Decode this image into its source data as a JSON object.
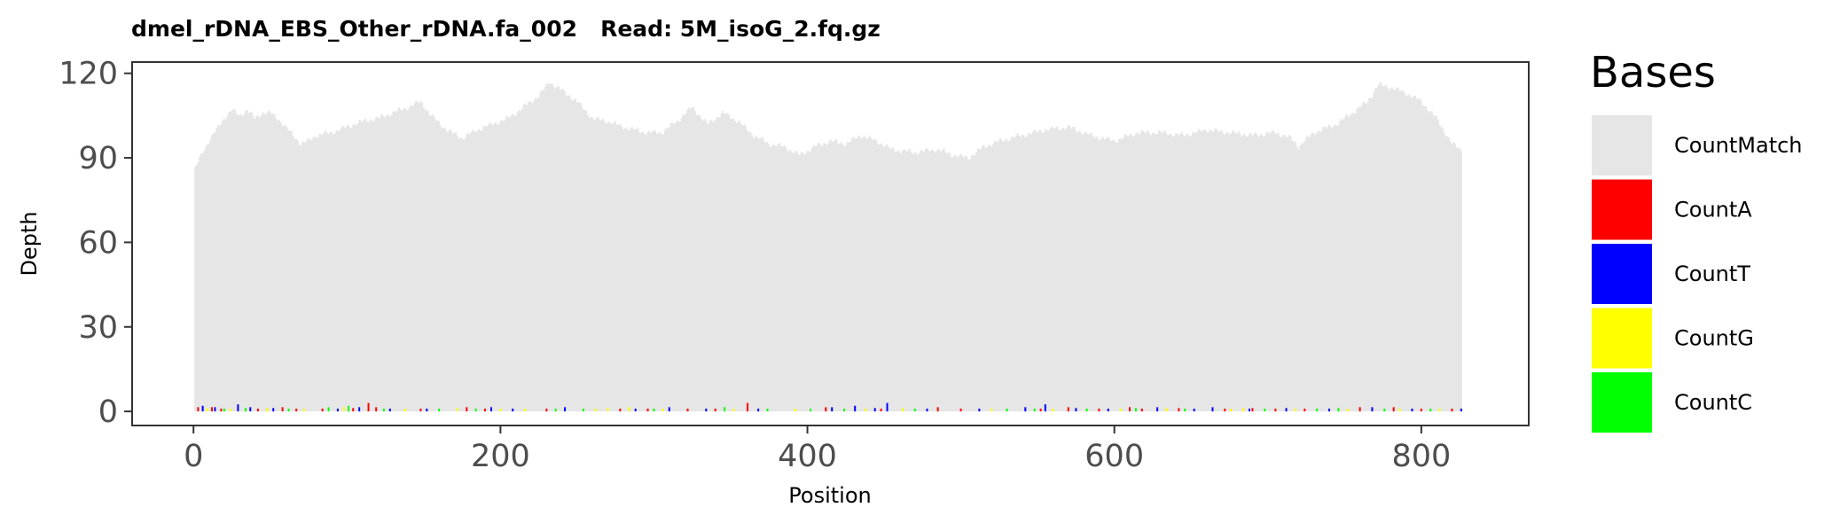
{
  "chart_data": {
    "type": "bar",
    "title": "dmel_rDNA_EBS_Other_rDNA.fa_002   Read: 5M_isoG_2.fq.gz",
    "xlabel": "Position",
    "ylabel": "Depth",
    "xlim": [
      -40,
      870
    ],
    "ylim": [
      -5,
      124
    ],
    "x_ticks": [
      0,
      200,
      400,
      600,
      800
    ],
    "y_ticks": [
      0,
      30,
      60,
      90,
      120
    ],
    "grid": false,
    "legend": {
      "title": "Bases",
      "placement": "right",
      "entries": [
        {
          "label": "CountMatch",
          "color": "#e6e6e6"
        },
        {
          "label": "CountA",
          "color": "#ff0000"
        },
        {
          "label": "CountT",
          "color": "#0000ff"
        },
        {
          "label": "CountG",
          "color": "#ffff00"
        },
        {
          "label": "CountC",
          "color": "#00ff00"
        }
      ]
    },
    "series": [
      {
        "name": "CountMatch",
        "color": "#e6e6e6",
        "profile": [
          [
            1,
            86
          ],
          [
            5,
            91
          ],
          [
            10,
            96
          ],
          [
            15,
            100
          ],
          [
            20,
            104
          ],
          [
            25,
            107
          ],
          [
            30,
            105
          ],
          [
            35,
            107
          ],
          [
            40,
            104
          ],
          [
            45,
            106
          ],
          [
            50,
            106
          ],
          [
            55,
            104
          ],
          [
            60,
            101
          ],
          [
            65,
            98
          ],
          [
            70,
            95
          ],
          [
            75,
            96
          ],
          [
            80,
            98
          ],
          [
            90,
            99
          ],
          [
            100,
            101
          ],
          [
            110,
            103
          ],
          [
            120,
            104
          ],
          [
            130,
            106
          ],
          [
            140,
            108
          ],
          [
            148,
            110
          ],
          [
            155,
            105
          ],
          [
            165,
            100
          ],
          [
            175,
            97
          ],
          [
            185,
            100
          ],
          [
            195,
            102
          ],
          [
            205,
            104
          ],
          [
            215,
            108
          ],
          [
            225,
            112
          ],
          [
            232,
            117
          ],
          [
            240,
            114
          ],
          [
            250,
            110
          ],
          [
            260,
            104
          ],
          [
            270,
            103
          ],
          [
            280,
            101
          ],
          [
            295,
            99
          ],
          [
            305,
            99
          ],
          [
            315,
            103
          ],
          [
            325,
            108
          ],
          [
            335,
            102
          ],
          [
            345,
            106
          ],
          [
            355,
            103
          ],
          [
            365,
            98
          ],
          [
            375,
            95
          ],
          [
            385,
            94
          ],
          [
            395,
            91
          ],
          [
            405,
            94
          ],
          [
            415,
            96
          ],
          [
            425,
            95
          ],
          [
            435,
            98
          ],
          [
            445,
            96
          ],
          [
            455,
            93
          ],
          [
            470,
            92
          ],
          [
            485,
            93
          ],
          [
            495,
            91
          ],
          [
            505,
            90
          ],
          [
            515,
            94
          ],
          [
            525,
            96
          ],
          [
            540,
            98
          ],
          [
            555,
            100
          ],
          [
            570,
            101
          ],
          [
            585,
            98
          ],
          [
            600,
            96
          ],
          [
            615,
            99
          ],
          [
            630,
            99
          ],
          [
            645,
            98
          ],
          [
            660,
            100
          ],
          [
            675,
            99
          ],
          [
            690,
            98
          ],
          [
            705,
            99
          ],
          [
            715,
            97
          ],
          [
            720,
            94
          ],
          [
            730,
            99
          ],
          [
            745,
            102
          ],
          [
            755,
            106
          ],
          [
            765,
            110
          ],
          [
            772,
            116
          ],
          [
            780,
            115
          ],
          [
            790,
            113
          ],
          [
            800,
            110
          ],
          [
            810,
            104
          ],
          [
            820,
            95
          ],
          [
            826,
            93
          ]
        ]
      },
      {
        "name": "CountA",
        "color": "#ff0000",
        "bars": [
          [
            3,
            1.5
          ],
          [
            12,
            1.5
          ],
          [
            18,
            1
          ],
          [
            42,
            1
          ],
          [
            58,
            1.5
          ],
          [
            67,
            1
          ],
          [
            84,
            1
          ],
          [
            104,
            1.2
          ],
          [
            114,
            3
          ],
          [
            119,
            1.5
          ],
          [
            148,
            1
          ],
          [
            178,
            1.5
          ],
          [
            190,
            1
          ],
          [
            230,
            1
          ],
          [
            278,
            1
          ],
          [
            296,
            1
          ],
          [
            322,
            1
          ],
          [
            340,
            1
          ],
          [
            361,
            3
          ],
          [
            412,
            1.5
          ],
          [
            448,
            1
          ],
          [
            485,
            1.5
          ],
          [
            500,
            1
          ],
          [
            552,
            1
          ],
          [
            570,
            1.5
          ],
          [
            590,
            1
          ],
          [
            610,
            1.5
          ],
          [
            618,
            1
          ],
          [
            642,
            1.2
          ],
          [
            672,
            1
          ],
          [
            690,
            1.2
          ],
          [
            705,
            1
          ],
          [
            724,
            1
          ],
          [
            760,
            1.5
          ],
          [
            782,
            1.5
          ],
          [
            800,
            1
          ],
          [
            820,
            1
          ]
        ]
      },
      {
        "name": "CountT",
        "color": "#0000ff",
        "bars": [
          [
            6,
            2
          ],
          [
            14,
            1.5
          ],
          [
            29,
            2.5
          ],
          [
            37,
            1.5
          ],
          [
            52,
            1.2
          ],
          [
            94,
            1
          ],
          [
            108,
            1.5
          ],
          [
            128,
            1
          ],
          [
            152,
            1
          ],
          [
            194,
            1.5
          ],
          [
            208,
            1
          ],
          [
            242,
            1.5
          ],
          [
            288,
            1
          ],
          [
            310,
            1.5
          ],
          [
            334,
            1
          ],
          [
            368,
            1
          ],
          [
            416,
            1.5
          ],
          [
            431,
            2
          ],
          [
            444,
            1.2
          ],
          [
            452,
            3
          ],
          [
            478,
            1
          ],
          [
            512,
            1
          ],
          [
            542,
            1.5
          ],
          [
            555,
            2.5
          ],
          [
            575,
            1.2
          ],
          [
            596,
            1
          ],
          [
            628,
            1.5
          ],
          [
            652,
            1
          ],
          [
            664,
            1.5
          ],
          [
            688,
            1
          ],
          [
            712,
            1.2
          ],
          [
            740,
            1
          ],
          [
            768,
            1.5
          ],
          [
            794,
            1
          ],
          [
            826,
            1
          ]
        ]
      },
      {
        "name": "CountG",
        "color": "#ffff00",
        "bars": [
          [
            9,
            1.2
          ],
          [
            24,
            1
          ],
          [
            48,
            1.2
          ],
          [
            72,
            1
          ],
          [
            98,
            1.5
          ],
          [
            138,
            1
          ],
          [
            172,
            1.2
          ],
          [
            200,
            1
          ],
          [
            216,
            1
          ],
          [
            262,
            1
          ],
          [
            270,
            1.2
          ],
          [
            284,
            1.5
          ],
          [
            306,
            1
          ],
          [
            352,
            1
          ],
          [
            392,
            1
          ],
          [
            438,
            1
          ],
          [
            462,
            1.2
          ],
          [
            520,
            1
          ],
          [
            560,
            1
          ],
          [
            604,
            1
          ],
          [
            634,
            1.2
          ],
          [
            676,
            1
          ],
          [
            684,
            1.2
          ],
          [
            718,
            1
          ],
          [
            752,
            1
          ],
          [
            786,
            1
          ],
          [
            812,
            1
          ]
        ]
      },
      {
        "name": "CountC",
        "color": "#00ff00",
        "bars": [
          [
            20,
            1
          ],
          [
            34,
            1.2
          ],
          [
            62,
            1
          ],
          [
            88,
            1.5
          ],
          [
            101,
            2
          ],
          [
            124,
            1
          ],
          [
            160,
            1
          ],
          [
            184,
            1
          ],
          [
            236,
            1
          ],
          [
            254,
            1
          ],
          [
            300,
            1
          ],
          [
            346,
            1.5
          ],
          [
            374,
            1
          ],
          [
            402,
            1
          ],
          [
            424,
            1
          ],
          [
            470,
            1
          ],
          [
            530,
            1
          ],
          [
            548,
            1
          ],
          [
            582,
            1
          ],
          [
            614,
            1.2
          ],
          [
            646,
            1
          ],
          [
            698,
            1
          ],
          [
            732,
            1
          ],
          [
            746,
            1.2
          ],
          [
            776,
            1
          ],
          [
            806,
            1
          ]
        ]
      }
    ]
  }
}
